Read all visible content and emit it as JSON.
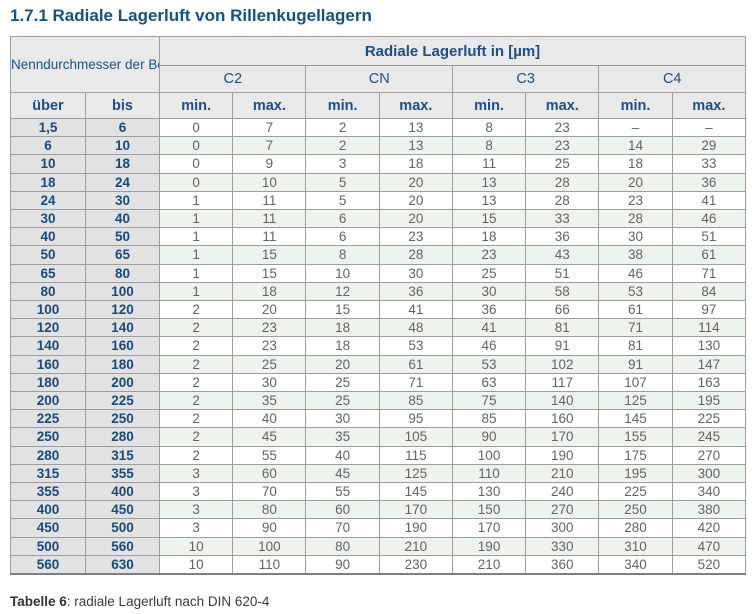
{
  "page_title": "1.7.1 Radiale Lagerluft von Rillenkugellagern",
  "table": {
    "header": {
      "bore_diameter_label": "Nenndurchmesser der Bohrung d [mm]",
      "clearance_label": "Radiale Lagerluft in [µm]",
      "classes": [
        "C2",
        "CN",
        "C3",
        "C4"
      ],
      "over_label": "über",
      "to_label": "bis",
      "min_label": "min.",
      "max_label": "max."
    },
    "rows": [
      {
        "ueber": "1,5",
        "bis": "6",
        "values": [
          "0",
          "7",
          "2",
          "13",
          "8",
          "23",
          "–",
          "–"
        ]
      },
      {
        "ueber": "6",
        "bis": "10",
        "values": [
          "0",
          "7",
          "2",
          "13",
          "8",
          "23",
          "14",
          "29"
        ]
      },
      {
        "ueber": "10",
        "bis": "18",
        "values": [
          "0",
          "9",
          "3",
          "18",
          "11",
          "25",
          "18",
          "33"
        ]
      },
      {
        "ueber": "18",
        "bis": "24",
        "values": [
          "0",
          "10",
          "5",
          "20",
          "13",
          "28",
          "20",
          "36"
        ]
      },
      {
        "ueber": "24",
        "bis": "30",
        "values": [
          "1",
          "11",
          "5",
          "20",
          "13",
          "28",
          "23",
          "41"
        ]
      },
      {
        "ueber": "30",
        "bis": "40",
        "values": [
          "1",
          "11",
          "6",
          "20",
          "15",
          "33",
          "28",
          "46"
        ]
      },
      {
        "ueber": "40",
        "bis": "50",
        "values": [
          "1",
          "11",
          "6",
          "23",
          "18",
          "36",
          "30",
          "51"
        ]
      },
      {
        "ueber": "50",
        "bis": "65",
        "values": [
          "1",
          "15",
          "8",
          "28",
          "23",
          "43",
          "38",
          "61"
        ]
      },
      {
        "ueber": "65",
        "bis": "80",
        "values": [
          "1",
          "15",
          "10",
          "30",
          "25",
          "51",
          "46",
          "71"
        ]
      },
      {
        "ueber": "80",
        "bis": "100",
        "values": [
          "1",
          "18",
          "12",
          "36",
          "30",
          "58",
          "53",
          "84"
        ]
      },
      {
        "ueber": "100",
        "bis": "120",
        "values": [
          "2",
          "20",
          "15",
          "41",
          "36",
          "66",
          "61",
          "97"
        ]
      },
      {
        "ueber": "120",
        "bis": "140",
        "values": [
          "2",
          "23",
          "18",
          "48",
          "41",
          "81",
          "71",
          "114"
        ]
      },
      {
        "ueber": "140",
        "bis": "160",
        "values": [
          "2",
          "23",
          "18",
          "53",
          "46",
          "91",
          "81",
          "130"
        ]
      },
      {
        "ueber": "160",
        "bis": "180",
        "values": [
          "2",
          "25",
          "20",
          "61",
          "53",
          "102",
          "91",
          "147"
        ]
      },
      {
        "ueber": "180",
        "bis": "200",
        "values": [
          "2",
          "30",
          "25",
          "71",
          "63",
          "117",
          "107",
          "163"
        ]
      },
      {
        "ueber": "200",
        "bis": "225",
        "values": [
          "2",
          "35",
          "25",
          "85",
          "75",
          "140",
          "125",
          "195"
        ]
      },
      {
        "ueber": "225",
        "bis": "250",
        "values": [
          "2",
          "40",
          "30",
          "95",
          "85",
          "160",
          "145",
          "225"
        ]
      },
      {
        "ueber": "250",
        "bis": "280",
        "values": [
          "2",
          "45",
          "35",
          "105",
          "90",
          "170",
          "155",
          "245"
        ]
      },
      {
        "ueber": "280",
        "bis": "315",
        "values": [
          "2",
          "55",
          "40",
          "115",
          "100",
          "190",
          "175",
          "270"
        ]
      },
      {
        "ueber": "315",
        "bis": "355",
        "values": [
          "3",
          "60",
          "45",
          "125",
          "110",
          "210",
          "195",
          "300"
        ]
      },
      {
        "ueber": "355",
        "bis": "400",
        "values": [
          "3",
          "70",
          "55",
          "145",
          "130",
          "240",
          "225",
          "340"
        ]
      },
      {
        "ueber": "400",
        "bis": "450",
        "values": [
          "3",
          "80",
          "60",
          "170",
          "150",
          "270",
          "250",
          "380"
        ]
      },
      {
        "ueber": "450",
        "bis": "500",
        "values": [
          "3",
          "90",
          "70",
          "190",
          "170",
          "300",
          "280",
          "420"
        ]
      },
      {
        "ueber": "500",
        "bis": "560",
        "values": [
          "10",
          "100",
          "80",
          "210",
          "190",
          "330",
          "310",
          "470"
        ]
      },
      {
        "ueber": "560",
        "bis": "630",
        "values": [
          "10",
          "110",
          "90",
          "230",
          "210",
          "360",
          "340",
          "520"
        ]
      }
    ]
  },
  "caption": {
    "bold": "Tabelle 6",
    "rest": ": radiale Lagerluft nach DIN 620-4"
  },
  "colors": {
    "heading_blue": "#155186",
    "header_text_blue": "#1b4f87",
    "table_header_bg": "#e9e9e9",
    "row_header_bg": "#e2e2e2",
    "stripe_green": "#edf4ed",
    "border_gray": "#9b9e9a",
    "value_text_gray": "#636363"
  }
}
